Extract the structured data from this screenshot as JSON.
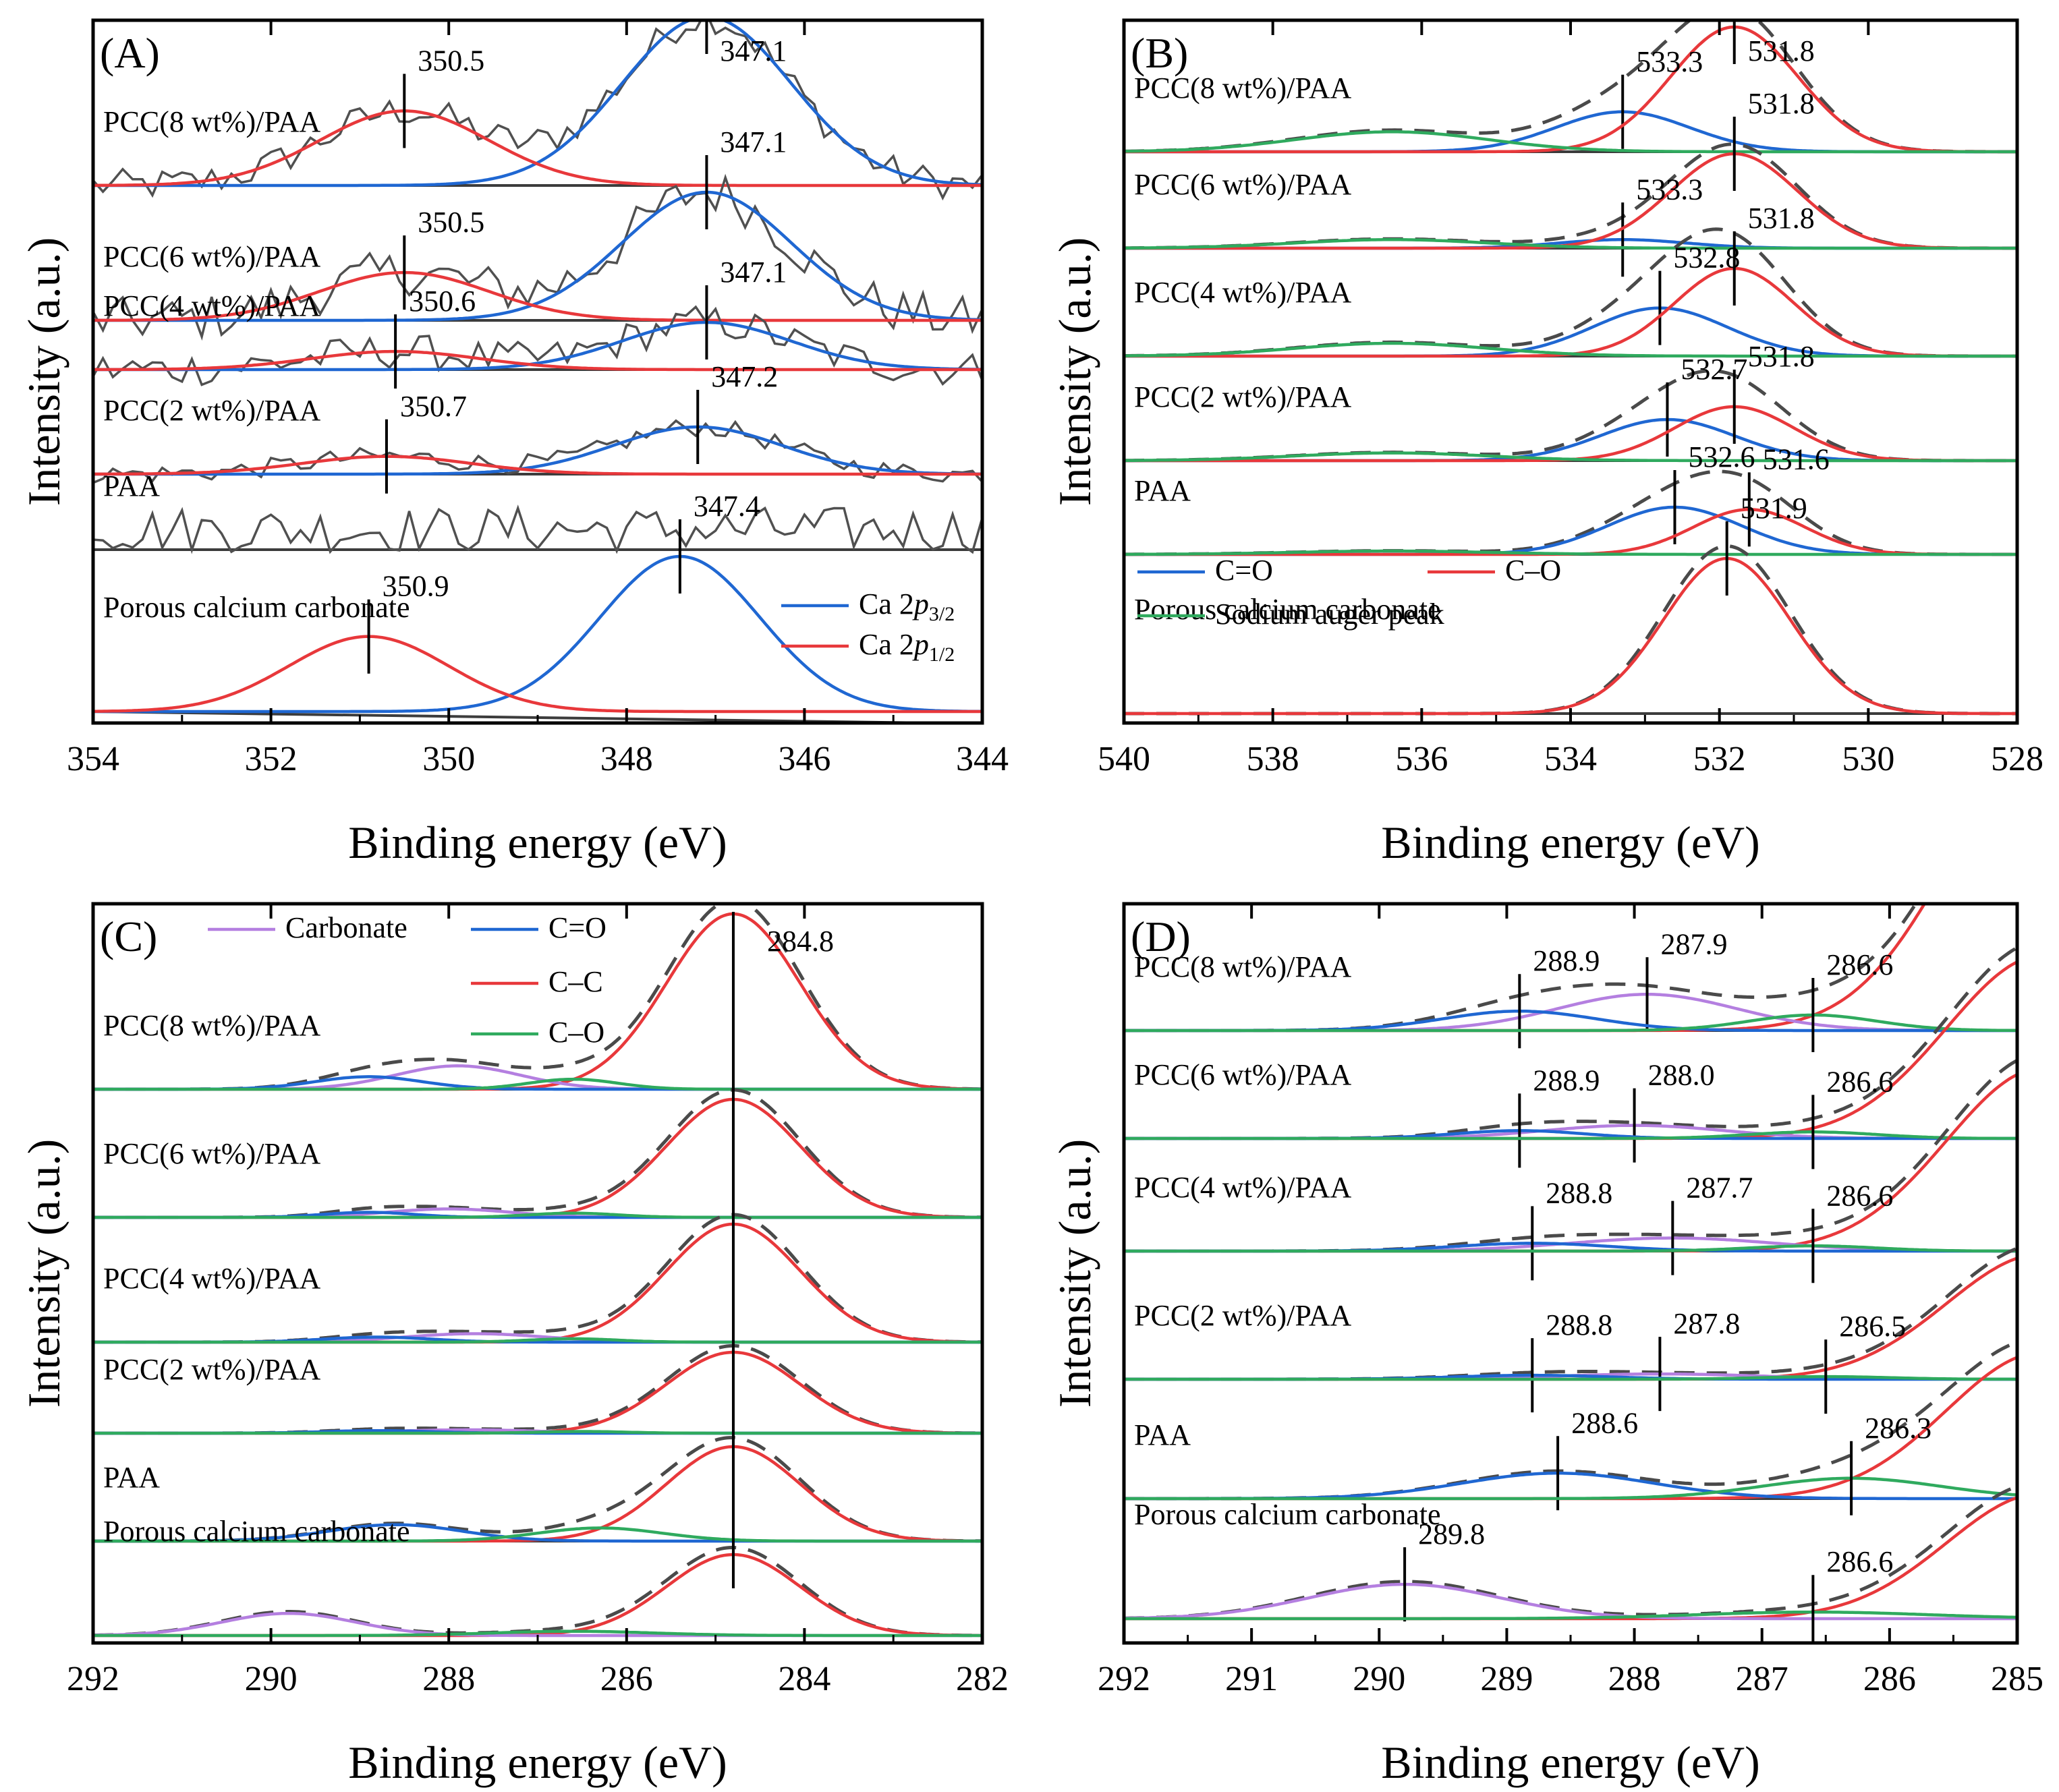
{
  "colors": {
    "blue": "#1f67d2",
    "red": "#e8383b",
    "green": "#2faa5e",
    "purple": "#b47fe0",
    "envelope": "#4a4a4a",
    "raw": "#505050",
    "baseline": "#3c3c3c"
  },
  "chart_data": [
    {
      "panel": "(A)",
      "type": "line",
      "xlabel": "Binding energy (eV)",
      "ylabel": "Intensity (a.u.)",
      "xlim": [
        354,
        344
      ],
      "xticks": [
        "354",
        "352",
        "350",
        "348",
        "346",
        "344"
      ],
      "legend": [
        {
          "name": "Ca 2p3/2",
          "main": "Ca 2",
          "italic": "p",
          "sub": "3/2",
          "color": "blue"
        },
        {
          "name": "Ca 2p1/2",
          "main": "Ca 2",
          "italic": "p",
          "sub": "1/2",
          "color": "red"
        }
      ],
      "samples": [
        {
          "label": "PCC(8 wt%)/PAA",
          "raw": true,
          "envelope": false,
          "peaks": [
            {
              "component": "Ca 2p3/2",
              "color": "blue",
              "center": 347.1,
              "height": 0.95,
              "sigma": 0.95,
              "label": "347.1"
            },
            {
              "component": "Ca 2p1/2",
              "color": "red",
              "center": 350.5,
              "height": 0.42,
              "sigma": 0.95,
              "label": "350.5"
            }
          ]
        },
        {
          "label": "PCC(6 wt%)/PAA",
          "raw": true,
          "envelope": false,
          "peaks": [
            {
              "component": "Ca 2p3/2",
              "color": "blue",
              "center": 347.1,
              "height": 0.75,
              "sigma": 0.95,
              "label": "347.1"
            },
            {
              "component": "Ca 2p1/2",
              "color": "red",
              "center": 350.5,
              "height": 0.28,
              "sigma": 0.95,
              "label": "350.5"
            }
          ]
        },
        {
          "label": "PCC(4 wt%)/PAA",
          "raw": true,
          "envelope": false,
          "peaks": [
            {
              "component": "Ca 2p3/2",
              "color": "blue",
              "center": 347.1,
              "height": 0.52,
              "sigma": 0.95,
              "label": "347.1"
            },
            {
              "component": "Ca 2p1/2",
              "color": "red",
              "center": 350.6,
              "height": 0.2,
              "sigma": 0.95,
              "label": "350.6"
            }
          ]
        },
        {
          "label": "PCC(2 wt%)/PAA",
          "raw": true,
          "envelope": false,
          "peaks": [
            {
              "component": "Ca 2p3/2",
              "color": "blue",
              "center": 347.2,
              "height": 0.4,
              "sigma": 0.95,
              "label": "347.2"
            },
            {
              "component": "Ca 2p1/2",
              "color": "red",
              "center": 350.7,
              "height": 0.15,
              "sigma": 0.95,
              "label": "350.7"
            }
          ]
        },
        {
          "label": "PAA",
          "raw": true,
          "envelope": false,
          "peaks": []
        },
        {
          "label": "Porous calcium carbonate",
          "raw": false,
          "envelope": false,
          "peaks": [
            {
              "component": "Ca 2p3/2",
              "color": "blue",
              "center": 347.4,
              "height": 1.55,
              "sigma": 0.9,
              "label": "347.4"
            },
            {
              "component": "Ca 2p1/2",
              "color": "red",
              "center": 350.9,
              "height": 0.75,
              "sigma": 0.9,
              "label": "350.9"
            }
          ]
        }
      ]
    },
    {
      "panel": "(B)",
      "type": "line",
      "xlabel": "Binding energy (eV)",
      "ylabel": "Intensity (a.u.)",
      "xlim": [
        540,
        528
      ],
      "xticks": [
        "540",
        "538",
        "536",
        "534",
        "532",
        "530",
        "528"
      ],
      "legend": [
        {
          "name": "C=O",
          "color": "blue"
        },
        {
          "name": "C–O",
          "color": "red"
        },
        {
          "name": "Sodium auger peak",
          "color": "green"
        }
      ],
      "samples": [
        {
          "label": "PCC(8 wt%)/PAA",
          "envelope": true,
          "peaks": [
            {
              "component": "C=O",
              "color": "blue",
              "center": 533.3,
              "height": 0.4,
              "sigma": 0.9,
              "label": "533.3"
            },
            {
              "component": "C–O",
              "color": "red",
              "center": 531.8,
              "height": 1.25,
              "sigma": 0.85,
              "label": "531.8"
            },
            {
              "component": "Sodium auger peak",
              "color": "green",
              "center": 536.4,
              "height": 0.2,
              "sigma": 1.3
            }
          ]
        },
        {
          "label": "PCC(6 wt%)/PAA",
          "envelope": true,
          "peaks": [
            {
              "component": "C=O",
              "color": "blue",
              "center": 533.3,
              "height": 0.05,
              "sigma": 0.85,
              "label": "533.3"
            },
            {
              "component": "C–O",
              "color": "red",
              "center": 531.8,
              "height": 0.55,
              "sigma": 0.85,
              "label": "531.8"
            },
            {
              "component": "Sodium auger peak",
              "color": "green",
              "center": 536.4,
              "height": 0.05,
              "sigma": 1.3
            }
          ]
        },
        {
          "label": "PCC(4 wt%)/PAA",
          "envelope": true,
          "peaks": [
            {
              "component": "C=O",
              "color": "blue",
              "center": 532.8,
              "height": 0.45,
              "sigma": 0.9,
              "label": "532.8"
            },
            {
              "component": "C–O",
              "color": "red",
              "center": 531.8,
              "height": 0.82,
              "sigma": 0.8,
              "label": "531.8"
            },
            {
              "component": "Sodium auger peak",
              "color": "green",
              "center": 536.4,
              "height": 0.12,
              "sigma": 1.3
            }
          ]
        },
        {
          "label": "PCC(2 wt%)/PAA",
          "envelope": true,
          "peaks": [
            {
              "component": "C=O",
              "color": "blue",
              "center": 532.7,
              "height": 0.32,
              "sigma": 0.9,
              "label": "532.7"
            },
            {
              "component": "C–O",
              "color": "red",
              "center": 531.8,
              "height": 0.42,
              "sigma": 0.8,
              "label": "531.8"
            },
            {
              "component": "Sodium auger peak",
              "color": "green",
              "center": 536.4,
              "height": 0.06,
              "sigma": 1.3
            }
          ]
        },
        {
          "label": "PAA",
          "envelope": true,
          "peaks": [
            {
              "component": "C=O",
              "color": "blue",
              "center": 532.6,
              "height": 0.42,
              "sigma": 0.9,
              "label": "532.6"
            },
            {
              "component": "C–O",
              "color": "red",
              "center": 531.6,
              "height": 0.4,
              "sigma": 0.75,
              "label": "531.6"
            },
            {
              "component": "Sodium auger peak",
              "color": "green",
              "center": 536.4,
              "height": 0.03,
              "sigma": 1.3
            }
          ]
        },
        {
          "label": "Porous calcium carbonate",
          "envelope": true,
          "peaks": [
            {
              "component": "C–O",
              "color": "red",
              "center": 531.9,
              "height": 1.75,
              "sigma": 0.85,
              "label": "531.9"
            }
          ]
        }
      ]
    },
    {
      "panel": "(C)",
      "type": "line",
      "xlabel": "Binding energy (eV)",
      "ylabel": "Intensity (a.u.)",
      "xlim": [
        292,
        282
      ],
      "xticks": [
        "292",
        "290",
        "288",
        "286",
        "284",
        "282"
      ],
      "reference_line": {
        "x": 284.8,
        "label": "284.8"
      },
      "legend": [
        {
          "name": "Carbonate",
          "color": "purple"
        },
        {
          "name": "C=O",
          "color": "blue"
        },
        {
          "name": "C–C",
          "color": "red"
        },
        {
          "name": "C–O",
          "color": "green"
        }
      ],
      "samples": [
        {
          "label": "PCC(8 wt%)/PAA",
          "envelope": true,
          "peaks": [
            {
              "component": "C–C",
              "color": "red",
              "center": 284.8,
              "height": 2.1,
              "sigma": 0.75
            },
            {
              "component": "Carbonate",
              "color": "purple",
              "center": 287.9,
              "height": 0.28,
              "sigma": 0.7
            },
            {
              "component": "C=O",
              "color": "blue",
              "center": 288.9,
              "height": 0.15,
              "sigma": 0.6
            },
            {
              "component": "C–O",
              "color": "green",
              "center": 286.6,
              "height": 0.12,
              "sigma": 0.5
            }
          ]
        },
        {
          "label": "PCC(6 wt%)/PAA",
          "envelope": true,
          "peaks": [
            {
              "component": "C–C",
              "color": "red",
              "center": 284.8,
              "height": 1.4,
              "sigma": 0.75
            },
            {
              "component": "Carbonate",
              "color": "purple",
              "center": 288.0,
              "height": 0.1,
              "sigma": 0.7
            },
            {
              "component": "C=O",
              "color": "blue",
              "center": 288.9,
              "height": 0.06,
              "sigma": 0.5
            },
            {
              "component": "C–O",
              "color": "green",
              "center": 286.6,
              "height": 0.05,
              "sigma": 0.5
            }
          ]
        },
        {
          "label": "PCC(4 wt%)/PAA",
          "envelope": true,
          "peaks": [
            {
              "component": "C–C",
              "color": "red",
              "center": 284.8,
              "height": 1.4,
              "sigma": 0.75
            },
            {
              "component": "Carbonate",
              "color": "purple",
              "center": 287.7,
              "height": 0.1,
              "sigma": 0.8
            },
            {
              "component": "C=O",
              "color": "blue",
              "center": 288.8,
              "height": 0.06,
              "sigma": 0.6
            },
            {
              "component": "C–O",
              "color": "green",
              "center": 286.6,
              "height": 0.04,
              "sigma": 0.5
            }
          ]
        },
        {
          "label": "PCC(2 wt%)/PAA",
          "envelope": true,
          "peaks": [
            {
              "component": "C–C",
              "color": "red",
              "center": 284.8,
              "height": 0.95,
              "sigma": 0.75
            },
            {
              "component": "Carbonate",
              "color": "purple",
              "center": 287.8,
              "height": 0.04,
              "sigma": 0.8
            },
            {
              "component": "C=O",
              "color": "blue",
              "center": 288.8,
              "height": 0.03,
              "sigma": 0.6
            },
            {
              "component": "C–O",
              "color": "green",
              "center": 286.5,
              "height": 0.02,
              "sigma": 0.5
            }
          ]
        },
        {
          "label": "PAA",
          "envelope": true,
          "peaks": [
            {
              "component": "C–C",
              "color": "red",
              "center": 284.8,
              "height": 1.15,
              "sigma": 0.75
            },
            {
              "component": "C=O",
              "color": "blue",
              "center": 288.6,
              "height": 0.2,
              "sigma": 0.75
            },
            {
              "component": "C–O",
              "color": "green",
              "center": 286.3,
              "height": 0.16,
              "sigma": 0.7
            }
          ]
        },
        {
          "label": "Porous calcium carbonate",
          "envelope": true,
          "peaks": [
            {
              "component": "C–C",
              "color": "red",
              "center": 284.8,
              "height": 0.95,
              "sigma": 0.75
            },
            {
              "component": "Carbonate",
              "color": "purple",
              "center": 289.8,
              "height": 0.26,
              "sigma": 0.75
            },
            {
              "component": "C–O",
              "color": "green",
              "center": 286.6,
              "height": 0.05,
              "sigma": 0.9
            }
          ]
        }
      ]
    },
    {
      "panel": "(D)",
      "type": "line",
      "xlabel": "Binding energy (eV)",
      "ylabel": "Intensity (a.u.)",
      "xlim": [
        292,
        285
      ],
      "xticks": [
        "292",
        "291",
        "290",
        "289",
        "288",
        "287",
        "286",
        "285"
      ],
      "samples": [
        {
          "label": "PCC(8 wt%)/PAA",
          "envelope": true,
          "peaks": [
            {
              "component": "C–C",
              "color": "red",
              "center": 284.8,
              "height": 2.1,
              "sigma": 0.75
            },
            {
              "component": "Carbonate",
              "color": "purple",
              "center": 287.9,
              "height": 0.28,
              "sigma": 0.7,
              "label": "287.9"
            },
            {
              "component": "C=O",
              "color": "blue",
              "center": 288.9,
              "height": 0.15,
              "sigma": 0.6,
              "label": "288.9"
            },
            {
              "component": "C–O",
              "color": "green",
              "center": 286.6,
              "height": 0.12,
              "sigma": 0.5,
              "label": "286.6"
            }
          ]
        },
        {
          "label": "PCC(6 wt%)/PAA",
          "envelope": true,
          "peaks": [
            {
              "component": "C–C",
              "color": "red",
              "center": 284.8,
              "height": 1.4,
              "sigma": 0.75
            },
            {
              "component": "Carbonate",
              "color": "purple",
              "center": 288.0,
              "height": 0.1,
              "sigma": 0.7,
              "label": "288.0"
            },
            {
              "component": "C=O",
              "color": "blue",
              "center": 288.9,
              "height": 0.06,
              "sigma": 0.5,
              "label": "288.9"
            },
            {
              "component": "C–O",
              "color": "green",
              "center": 286.6,
              "height": 0.05,
              "sigma": 0.5,
              "label": "286.6"
            }
          ]
        },
        {
          "label": "PCC(4 wt%)/PAA",
          "envelope": true,
          "peaks": [
            {
              "component": "C–C",
              "color": "red",
              "center": 284.8,
              "height": 1.4,
              "sigma": 0.75
            },
            {
              "component": "Carbonate",
              "color": "purple",
              "center": 287.7,
              "height": 0.1,
              "sigma": 0.8,
              "label": "287.7"
            },
            {
              "component": "C=O",
              "color": "blue",
              "center": 288.8,
              "height": 0.06,
              "sigma": 0.6,
              "label": "288.8"
            },
            {
              "component": "C–O",
              "color": "green",
              "center": 286.6,
              "height": 0.04,
              "sigma": 0.5,
              "label": "286.6"
            }
          ]
        },
        {
          "label": "PCC(2 wt%)/PAA",
          "envelope": true,
          "peaks": [
            {
              "component": "C–C",
              "color": "red",
              "center": 284.8,
              "height": 0.95,
              "sigma": 0.75
            },
            {
              "component": "Carbonate",
              "color": "purple",
              "center": 287.8,
              "height": 0.04,
              "sigma": 0.8,
              "label": "287.8"
            },
            {
              "component": "C=O",
              "color": "blue",
              "center": 288.8,
              "height": 0.03,
              "sigma": 0.6,
              "label": "288.8"
            },
            {
              "component": "C–O",
              "color": "green",
              "center": 286.5,
              "height": 0.02,
              "sigma": 0.5,
              "label": "286.5"
            }
          ]
        },
        {
          "label": "PAA",
          "envelope": true,
          "peaks": [
            {
              "component": "C–C",
              "color": "red",
              "center": 284.8,
              "height": 1.15,
              "sigma": 0.75
            },
            {
              "component": "C=O",
              "color": "blue",
              "center": 288.6,
              "height": 0.2,
              "sigma": 0.75,
              "label": "288.6"
            },
            {
              "component": "C–O",
              "color": "green",
              "center": 286.3,
              "height": 0.16,
              "sigma": 0.7,
              "label": "286.3"
            }
          ]
        },
        {
          "label": "Porous calcium carbonate",
          "envelope": true,
          "peaks": [
            {
              "component": "C–C",
              "color": "red",
              "center": 284.8,
              "height": 0.95,
              "sigma": 0.75
            },
            {
              "component": "Carbonate",
              "color": "purple",
              "center": 289.8,
              "height": 0.26,
              "sigma": 0.75,
              "label": "289.8"
            },
            {
              "component": "C–O",
              "color": "green",
              "center": 286.6,
              "height": 0.05,
              "sigma": 0.9,
              "label": "286.6"
            }
          ]
        }
      ]
    }
  ]
}
